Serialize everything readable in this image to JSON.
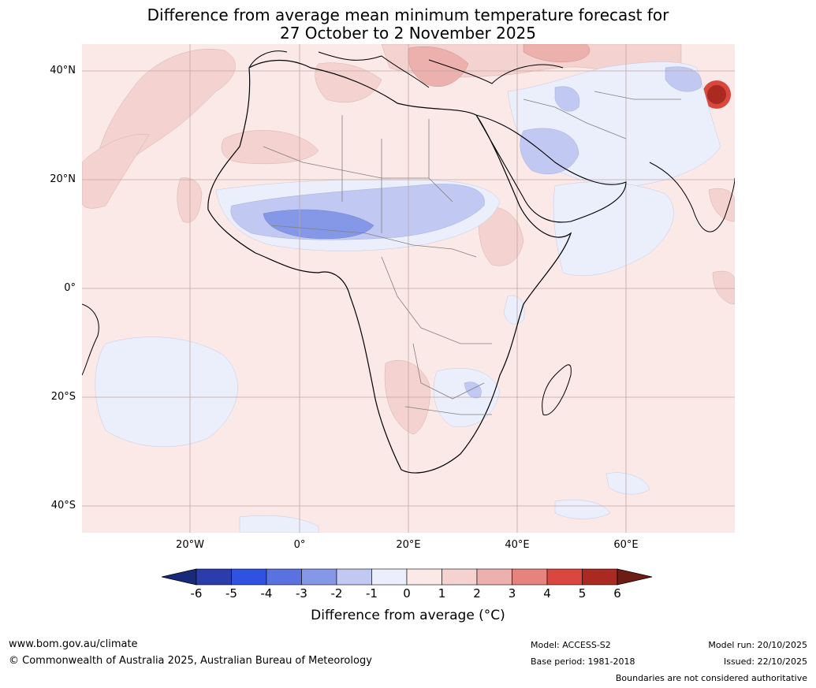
{
  "title": {
    "line1": "Difference from average mean minimum temperature forecast for",
    "line2": "27 October to 2 November 2025"
  },
  "map": {
    "region": "Africa",
    "lat_labels": [
      "40°N",
      "20°N",
      "0°",
      "20°S",
      "40°S"
    ],
    "lon_labels": [
      "20°W",
      "0°",
      "20°E",
      "40°E",
      "60°E"
    ],
    "colors": {
      "background_anomaly": "#fbe9e7",
      "water_neutral": "#ebeefb",
      "warm_1": "#f3d2cf",
      "warm_2": "#ecb0ad",
      "warm_5": "#aa2a22",
      "cool_1": "#c1c8f2",
      "cool_2": "#8598e8",
      "border": "#808080",
      "coast": "#000000"
    }
  },
  "legend": {
    "tick_labels": [
      "-6",
      "-5",
      "-4",
      "-3",
      "-2",
      "-1",
      "0",
      "1",
      "2",
      "3",
      "4",
      "5",
      "6"
    ],
    "colors": [
      "#1a2a7a",
      "#2a3daa",
      "#3052e0",
      "#5a72e0",
      "#8598e8",
      "#c1c8f2",
      "#ebeefb",
      "#fbe9e7",
      "#f3d2cf",
      "#ecb0ad",
      "#e5837c",
      "#d9473f",
      "#aa2a22",
      "#6e1d14"
    ],
    "title": "Difference from average (°C)"
  },
  "footer": {
    "website": "www.bom.gov.au/climate",
    "copyright": "© Commonwealth of Australia 2025, Australian Bureau of Meteorology",
    "model": "Model: ACCESS-S2",
    "base_period": "Base period: 1981-2018",
    "model_run": "Model run: 20/10/2025",
    "issued": "Issued: 22/10/2025",
    "disclaimer": "Boundaries are not considered authoritative"
  }
}
